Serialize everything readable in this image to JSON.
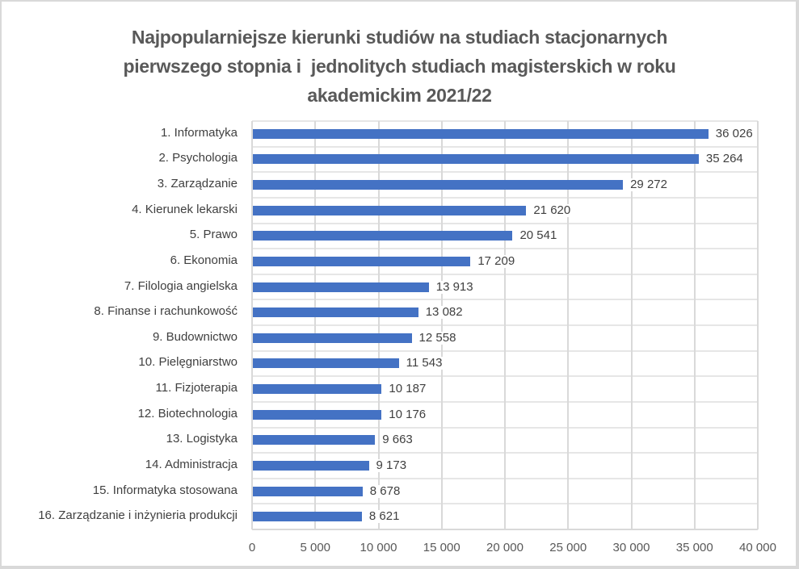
{
  "chart_data": {
    "type": "bar",
    "orientation": "horizontal",
    "title": "Najpopularniejsze kierunki studiów na studiach stacjonarnych pierwszego stopnia i  jednolitych studiach magisterskich w roku akademickim 2021/22",
    "title_lines": [
      "Najpopularniejsze kierunki studiów na studiach stacjonarnych",
      "pierwszego stopnia i  jednolitych studiach magisterskich w roku",
      "akademickim 2021/22"
    ],
    "categories": [
      "1. Informatyka",
      "2. Psychologia",
      "3. Zarządzanie",
      "4. Kierunek lekarski",
      "5. Prawo",
      "6. Ekonomia",
      "7. Filologia angielska",
      "8. Finanse i rachunkowość",
      "9. Budownictwo",
      "10. Pielęgniarstwo",
      "11. Fizjoterapia",
      "12. Biotechnologia",
      "13. Logistyka",
      "14. Administracja",
      "15. Informatyka stosowana",
      "16. Zarządzanie i inżynieria produkcji"
    ],
    "values": [
      36026,
      35264,
      29272,
      21620,
      20541,
      17209,
      13913,
      13082,
      12558,
      11543,
      10187,
      10176,
      9663,
      9173,
      8678,
      8621
    ],
    "value_labels": [
      "36 026",
      "35 264",
      "29 272",
      "21 620",
      "20 541",
      "17 209",
      "13 913",
      "13 082",
      "12 558",
      "11 543",
      "10 187",
      "10 176",
      "9 663",
      "9 173",
      "8 678",
      "8 621"
    ],
    "xlabel": "",
    "ylabel": "",
    "xlim": [
      0,
      40000
    ],
    "xticks": [
      0,
      5000,
      10000,
      15000,
      20000,
      25000,
      30000,
      35000,
      40000
    ],
    "xtick_labels": [
      "0",
      "5 000",
      "10 000",
      "15 000",
      "20 000",
      "25 000",
      "30 000",
      "35 000",
      "40 000"
    ],
    "grid": true,
    "legend": null,
    "bar_color": "#4472C4"
  }
}
